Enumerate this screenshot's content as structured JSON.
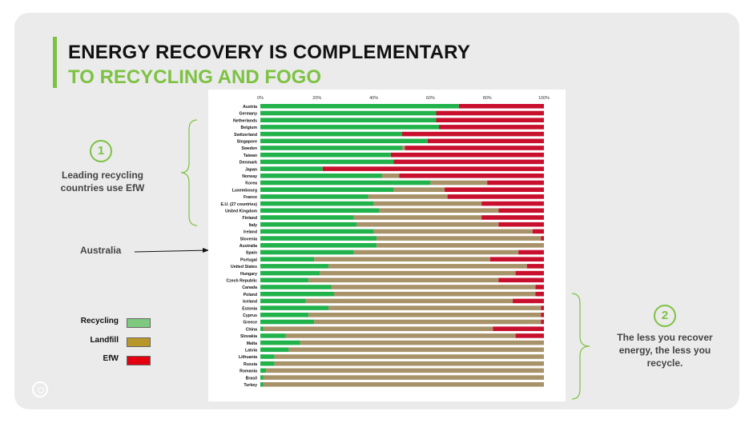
{
  "title_line1": "ENERGY RECOVERY IS COMPLEMENTARY",
  "title_line2": "TO RECYCLING AND FOGO",
  "callout1": {
    "number": "1",
    "text_line1": "Leading recycling",
    "text_line2": "countries use EfW"
  },
  "australia_label": "Australia",
  "callout2": {
    "number": "2",
    "text_line1": "The less you recover",
    "text_line2": "energy, the less you",
    "text_line3": "recycle."
  },
  "legend": [
    {
      "label": "Recycling",
      "color": "#7cc97f"
    },
    {
      "label": "Landfill",
      "color": "#b8972a"
    },
    {
      "label": "EfW",
      "color": "#e3000f"
    }
  ],
  "colors": {
    "recycling": "#22b24c",
    "landfill": "#a89269",
    "efw": "#c8102e",
    "accent": "#7dc242"
  },
  "chart_data": {
    "type": "bar",
    "orientation": "horizontal-stacked-100",
    "x_ticks": [
      "0%",
      "20%",
      "40%",
      "60%",
      "80%",
      "100%"
    ],
    "xlim": [
      0,
      100
    ],
    "categories": [
      "Austria",
      "Germany",
      "Netherlands",
      "Belgium",
      "Switzerland",
      "Singapore",
      "Sweden",
      "Taiwan",
      "Denmark",
      "Japan",
      "Norway",
      "Korea",
      "Luxembourg",
      "France",
      "E.U. (27 countries)",
      "United Kingdom",
      "Finland",
      "Italy",
      "Ireland",
      "Slovenia",
      "Australia",
      "Spain",
      "Portugal",
      "United States",
      "Hungary",
      "Czech Republic",
      "Canada",
      "Poland",
      "Iceland",
      "Estonia",
      "Cyprus",
      "Greece",
      "China",
      "Slovakia",
      "Malta",
      "Latvia",
      "Lithuania",
      "Russia",
      "Romania",
      "Brasil",
      "Turkey"
    ],
    "series": [
      {
        "name": "Recycling",
        "values": [
          70,
          62,
          62,
          63,
          50,
          59,
          50,
          46,
          47,
          22,
          43,
          60,
          47,
          38,
          40,
          42,
          33,
          34,
          40,
          41,
          41,
          33,
          19,
          24,
          21,
          17,
          25,
          26,
          16,
          24,
          17,
          19,
          1,
          9,
          14,
          10,
          5,
          5,
          2,
          1,
          1
        ]
      },
      {
        "name": "Landfill",
        "values": [
          0,
          0,
          0,
          0,
          0,
          0,
          1,
          0,
          0,
          0,
          6,
          20,
          18,
          28,
          38,
          42,
          45,
          50,
          56,
          58,
          59,
          58,
          62,
          70,
          69,
          67,
          72,
          71,
          73,
          75,
          82,
          80,
          81,
          81,
          86,
          90,
          95,
          95,
          98,
          99,
          99
        ]
      },
      {
        "name": "EfW",
        "values": [
          30,
          38,
          38,
          37,
          50,
          41,
          49,
          54,
          53,
          78,
          51,
          20,
          35,
          34,
          22,
          16,
          22,
          16,
          4,
          1,
          0,
          9,
          19,
          6,
          10,
          16,
          3,
          3,
          11,
          1,
          1,
          1,
          18,
          10,
          0,
          0,
          0,
          0,
          0,
          0,
          0
        ]
      }
    ]
  }
}
